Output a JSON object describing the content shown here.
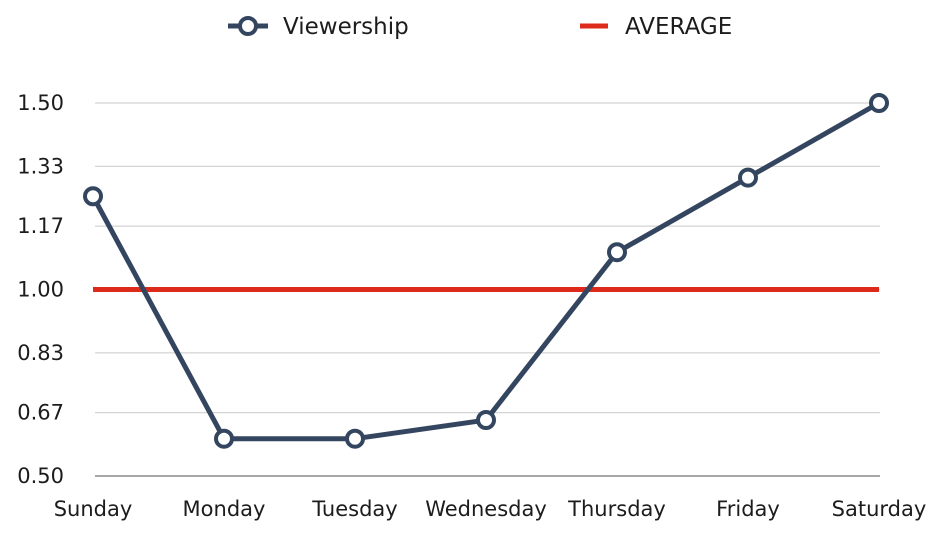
{
  "chart_data": {
    "type": "line",
    "categories": [
      "Sunday",
      "Monday",
      "Tuesday",
      "Wednesday",
      "Thursday",
      "Friday",
      "Saturday"
    ],
    "series": [
      {
        "name": "Viewership",
        "values": [
          1.25,
          0.6,
          0.6,
          0.65,
          1.1,
          1.3,
          1.5
        ],
        "color": "#34465f",
        "marker": "hollow-circle"
      },
      {
        "name": "AVERAGE",
        "values": [
          1.0,
          1.0,
          1.0,
          1.0,
          1.0,
          1.0,
          1.0
        ],
        "color": "#dd2a1b",
        "marker": "none"
      }
    ],
    "yticks": [
      "0.50",
      "0.67",
      "0.83",
      "1.00",
      "1.17",
      "1.33",
      "1.50"
    ],
    "ylim": [
      0.5,
      1.5
    ],
    "grid": true,
    "legend_position": "top-center"
  }
}
